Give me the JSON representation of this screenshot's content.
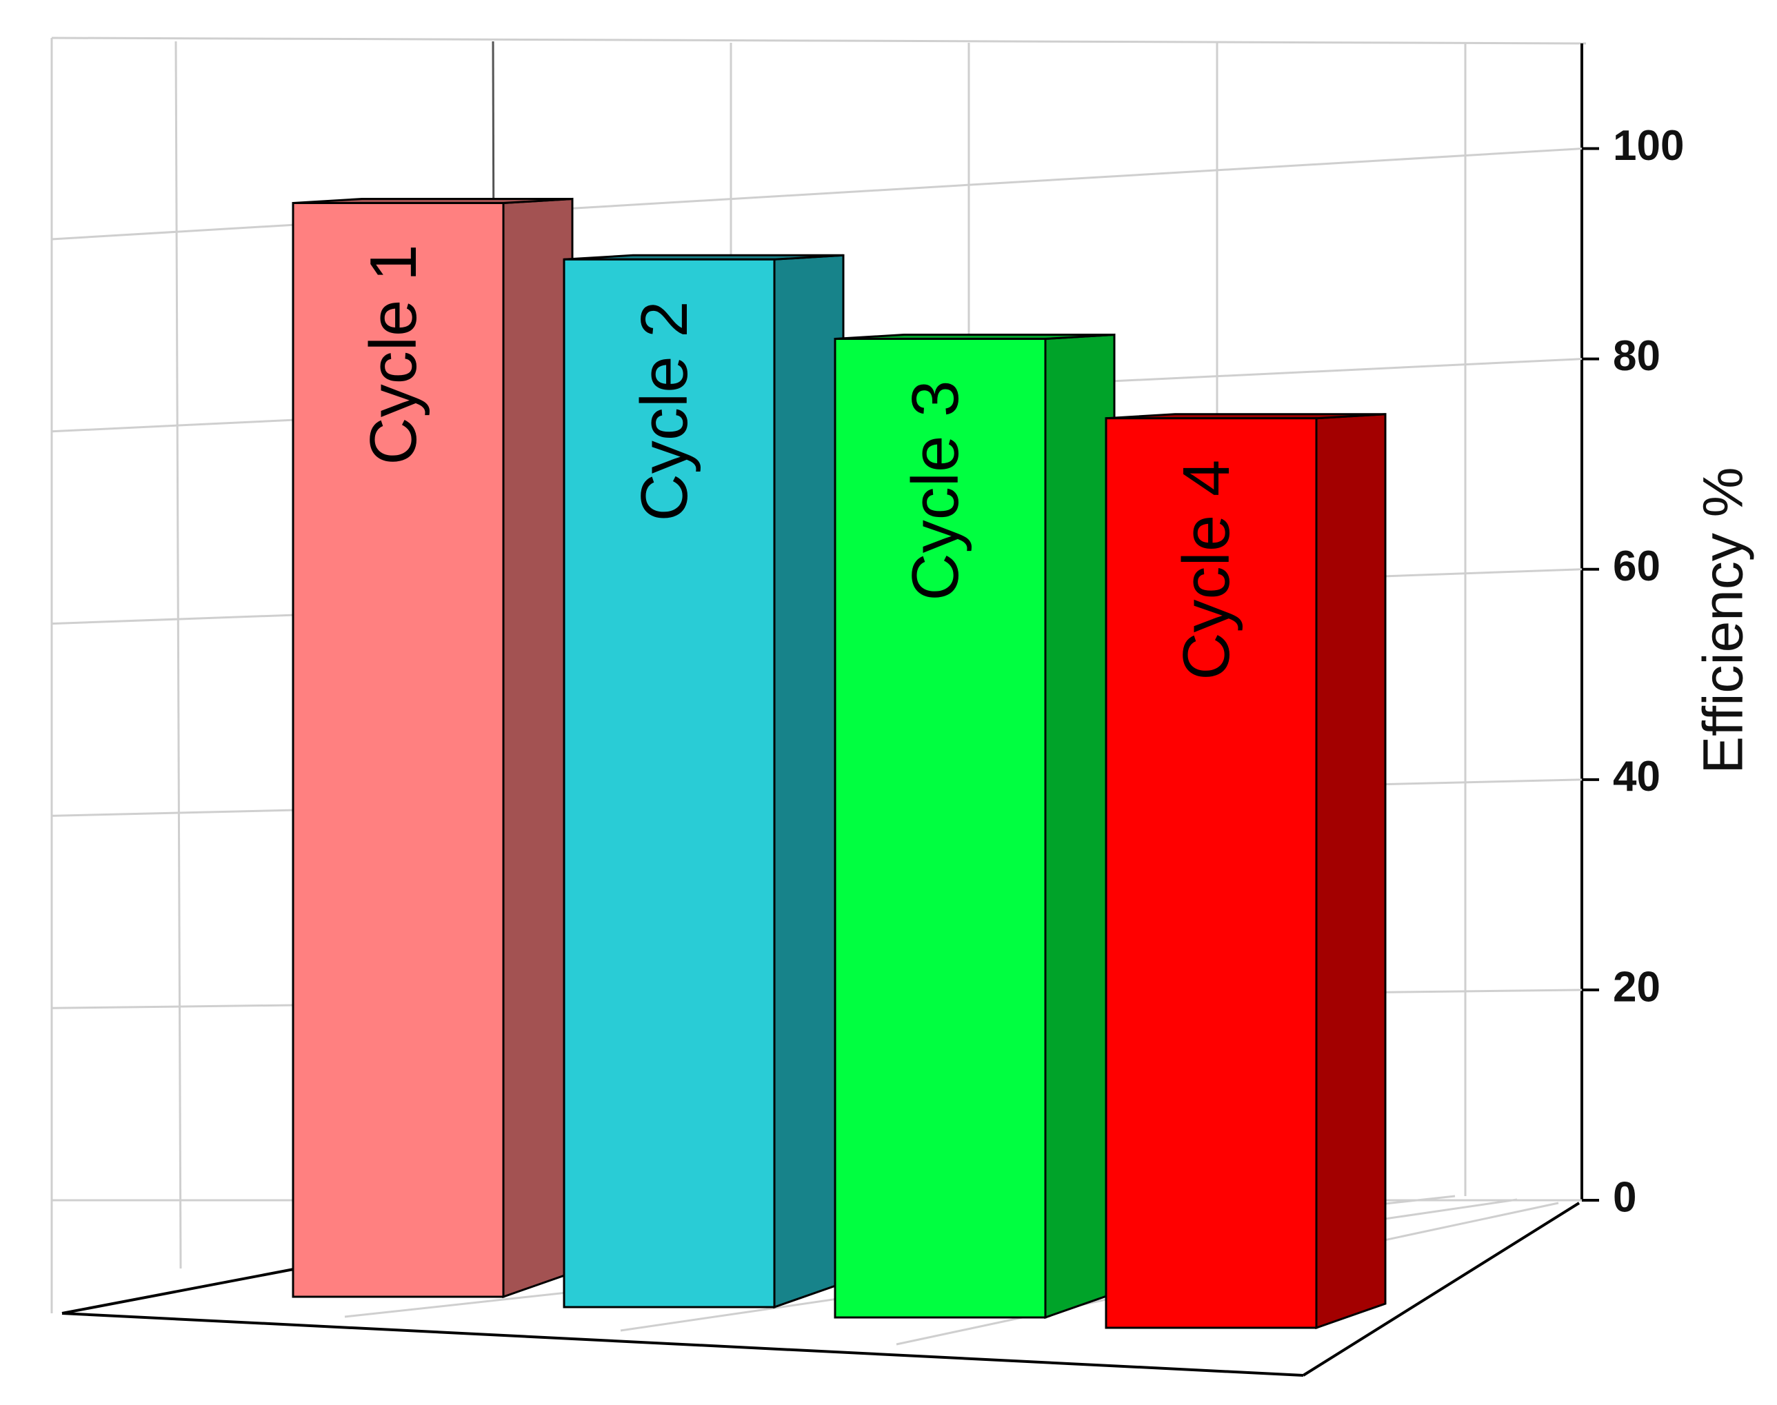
{
  "chart_data": {
    "type": "bar3d",
    "categories": [
      "Cycle 1",
      "Cycle 2",
      "Cycle 3",
      "Cycle 4"
    ],
    "values": [
      95,
      91,
      85,
      79
    ],
    "colors": [
      "#ff8080",
      "#29ccd6",
      "#00ff40",
      "#ff0000"
    ],
    "side_colors": [
      "#a35252",
      "#17838a",
      "#00a329",
      "#a30000"
    ],
    "y_label": "Efficiency %",
    "ylim": [
      0,
      110
    ],
    "yticks": [
      0,
      20,
      40,
      60,
      80,
      100
    ],
    "grid": true
  }
}
